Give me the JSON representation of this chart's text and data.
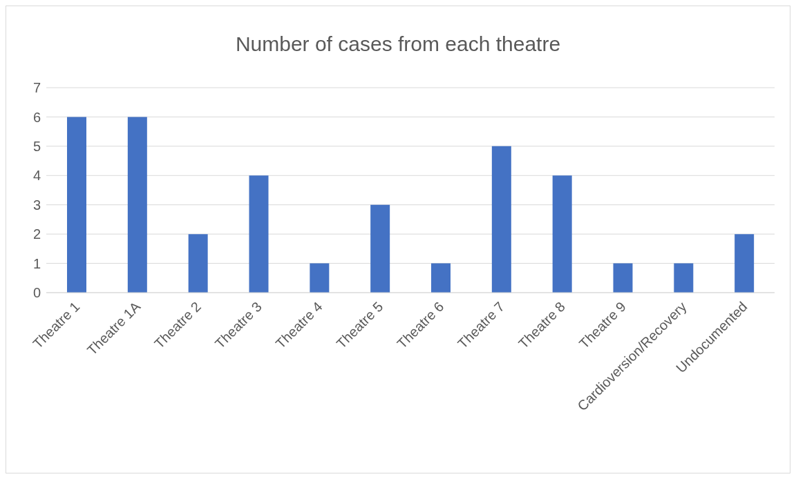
{
  "chart_data": {
    "type": "bar",
    "title": "Number of cases from each theatre",
    "categories": [
      "Theatre 1",
      "Theatre 1A",
      "Theatre 2",
      "Theatre 3",
      "Theatre 4",
      "Theatre 5",
      "Theatre 6",
      "Theatre 7",
      "Theatre 8",
      "Theatre 9",
      "Cardioversion/Recovery",
      "Undocumented"
    ],
    "values": [
      6,
      6,
      2,
      4,
      1,
      3,
      1,
      5,
      4,
      1,
      1,
      2
    ],
    "color": "#4472c4",
    "ylim": [
      0,
      7
    ],
    "yticks": [
      0,
      1,
      2,
      3,
      4,
      5,
      6,
      7
    ],
    "grid": "y"
  }
}
